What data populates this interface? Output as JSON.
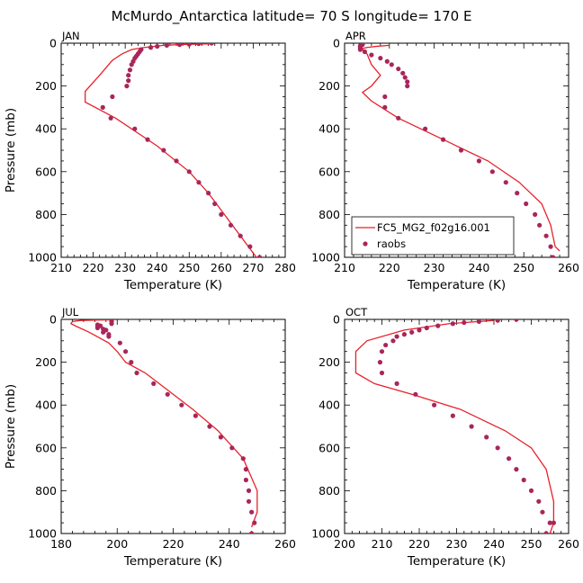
{
  "figure": {
    "title": "McMurdo_Antarctica  latitude= 70 S longitude= 170 E"
  },
  "legend": {
    "model_label": "FC5_MG2_f02g16.001",
    "obs_label": "raobs",
    "placement": "inside APR panel, lower-left",
    "model_color": "#e8212a",
    "obs_color": "#a8265a"
  },
  "chart_data": [
    {
      "type": "line",
      "panel": "JAN",
      "xlabel": "Temperature (K)",
      "ylabel": "Pressure (mb)",
      "xlim": [
        210,
        280
      ],
      "ylim": [
        1000,
        0
      ],
      "xticks": [
        210,
        220,
        230,
        240,
        250,
        260,
        270,
        280
      ],
      "yticks": [
        0,
        200,
        400,
        600,
        800,
        1000
      ],
      "grid": false,
      "series": [
        {
          "name": "FC5_MG2_f02g16.001",
          "style": "line",
          "color": "#e8212a",
          "points": [
            [
              257,
              3
            ],
            [
              250,
              5
            ],
            [
              242,
              10
            ],
            [
              236,
              20
            ],
            [
              232,
              30
            ],
            [
              229,
              50
            ],
            [
              226,
              80
            ],
            [
              222,
              150
            ],
            [
              217.5,
              225
            ],
            [
              217.5,
              275
            ],
            [
              227,
              350
            ],
            [
              240,
              480
            ],
            [
              250,
              600
            ],
            [
              256,
              700
            ],
            [
              261,
              800
            ],
            [
              266,
              900
            ],
            [
              271,
              1000
            ]
          ]
        },
        {
          "name": "raobs",
          "style": "markers",
          "color": "#a8265a",
          "points": [
            [
              257,
              0
            ],
            [
              253,
              2
            ],
            [
              250,
              5
            ],
            [
              247,
              7
            ],
            [
              243,
              10
            ],
            [
              240,
              15
            ],
            [
              238,
              20
            ],
            [
              235,
              30
            ],
            [
              234.5,
              40
            ],
            [
              234,
              50
            ],
            [
              233.5,
              60
            ],
            [
              233,
              70
            ],
            [
              232.5,
              85
            ],
            [
              232,
              100
            ],
            [
              231.5,
              125
            ],
            [
              231,
              150
            ],
            [
              231,
              175
            ],
            [
              230.5,
              200
            ],
            [
              226,
              250
            ],
            [
              223,
              300
            ],
            [
              225.5,
              350
            ],
            [
              233,
              400
            ],
            [
              237,
              450
            ],
            [
              242,
              500
            ],
            [
              246,
              550
            ],
            [
              250,
              600
            ],
            [
              253,
              650
            ],
            [
              256,
              700
            ],
            [
              258,
              750
            ],
            [
              260,
              800
            ],
            [
              263,
              850
            ],
            [
              266,
              900
            ],
            [
              269,
              950
            ],
            [
              272,
              1000
            ]
          ]
        }
      ]
    },
    {
      "type": "line",
      "panel": "APR",
      "xlabel": "Temperature (K)",
      "ylabel": "",
      "xlim": [
        210,
        260
      ],
      "ylim": [
        1000,
        0
      ],
      "xticks": [
        210,
        220,
        230,
        240,
        250,
        260
      ],
      "yticks": [
        0,
        200,
        400,
        600,
        800,
        1000
      ],
      "grid": false,
      "series": [
        {
          "name": "FC5_MG2_f02g16.001",
          "style": "line",
          "color": "#e8212a",
          "points": [
            [
              220,
              10
            ],
            [
              217,
              15
            ],
            [
              215,
              20
            ],
            [
              214,
              25
            ],
            [
              214,
              30
            ],
            [
              215,
              50
            ],
            [
              216,
              100
            ],
            [
              218,
              150
            ],
            [
              216,
              200
            ],
            [
              214,
              230
            ],
            [
              216,
              270
            ],
            [
              222,
              350
            ],
            [
              232,
              450
            ],
            [
              242,
              550
            ],
            [
              249,
              650
            ],
            [
              254,
              750
            ],
            [
              256,
              850
            ],
            [
              257,
              950
            ],
            [
              258,
              970
            ]
          ]
        },
        {
          "name": "raobs",
          "style": "markers",
          "color": "#a8265a",
          "points": [
            [
              214,
              2
            ],
            [
              214,
              7
            ],
            [
              213.5,
              12
            ],
            [
              213.5,
              17
            ],
            [
              213.5,
              22
            ],
            [
              213.5,
              30
            ],
            [
              214.5,
              40
            ],
            [
              216,
              55
            ],
            [
              218,
              70
            ],
            [
              219.5,
              85
            ],
            [
              220.5,
              100
            ],
            [
              222,
              120
            ],
            [
              223,
              140
            ],
            [
              223.5,
              160
            ],
            [
              224,
              180
            ],
            [
              224,
              200
            ],
            [
              219,
              250
            ],
            [
              219,
              300
            ],
            [
              222,
              350
            ],
            [
              228,
              400
            ],
            [
              232,
              450
            ],
            [
              236,
              500
            ],
            [
              240,
              550
            ],
            [
              243,
              600
            ],
            [
              246,
              650
            ],
            [
              248.5,
              700
            ],
            [
              250.5,
              750
            ],
            [
              252.5,
              800
            ],
            [
              253.5,
              850
            ],
            [
              255,
              900
            ],
            [
              256,
              950
            ],
            [
              256.5,
              1000
            ]
          ]
        }
      ]
    },
    {
      "type": "line",
      "panel": "JUL",
      "xlabel": "Temperature (K)",
      "ylabel": "Pressure (mb)",
      "xlim": [
        180,
        260
      ],
      "ylim": [
        1000,
        0
      ],
      "xticks": [
        180,
        200,
        220,
        240,
        260
      ],
      "yticks": [
        0,
        200,
        400,
        600,
        800,
        1000
      ],
      "grid": false,
      "series": [
        {
          "name": "FC5_MG2_f02g16.001",
          "style": "line",
          "color": "#e8212a",
          "points": [
            [
              199,
              2
            ],
            [
              193,
              3
            ],
            [
              187,
              5
            ],
            [
              184,
              10
            ],
            [
              183.5,
              20
            ],
            [
              185,
              30
            ],
            [
              190,
              60
            ],
            [
              197,
              110
            ],
            [
              200,
              150
            ],
            [
              203,
              200
            ],
            [
              210,
              250
            ],
            [
              218,
              330
            ],
            [
              227,
              420
            ],
            [
              236,
              520
            ],
            [
              245,
              650
            ],
            [
              250,
              800
            ],
            [
              250,
              900
            ],
            [
              248,
              970
            ]
          ]
        },
        {
          "name": "raobs",
          "style": "markers",
          "color": "#a8265a",
          "points": [
            [
              198,
              10
            ],
            [
              198,
              20
            ],
            [
              193,
              25
            ],
            [
              194,
              30
            ],
            [
              193,
              35
            ],
            [
              193,
              40
            ],
            [
              195,
              45
            ],
            [
              196,
              50
            ],
            [
              195,
              60
            ],
            [
              197,
              70
            ],
            [
              197,
              80
            ],
            [
              201,
              110
            ],
            [
              203,
              150
            ],
            [
              205,
              200
            ],
            [
              207,
              250
            ],
            [
              213,
              300
            ],
            [
              218,
              350
            ],
            [
              223,
              400
            ],
            [
              228,
              450
            ],
            [
              233,
              500
            ],
            [
              237,
              550
            ],
            [
              241,
              600
            ],
            [
              245,
              650
            ],
            [
              246,
              700
            ],
            [
              246,
              750
            ],
            [
              247,
              800
            ],
            [
              247,
              850
            ],
            [
              248,
              900
            ],
            [
              249,
              950
            ],
            [
              248,
              1000
            ]
          ]
        }
      ]
    },
    {
      "type": "line",
      "panel": "OCT",
      "xlabel": "Temperature (K)",
      "ylabel": "",
      "xlim": [
        200,
        260
      ],
      "ylim": [
        1000,
        0
      ],
      "xticks": [
        200,
        210,
        220,
        230,
        240,
        250,
        260
      ],
      "yticks": [
        0,
        200,
        400,
        600,
        800,
        1000
      ],
      "grid": false,
      "series": [
        {
          "name": "FC5_MG2_f02g16.001",
          "style": "line",
          "color": "#e8212a",
          "points": [
            [
              240,
              5
            ],
            [
              228,
              20
            ],
            [
              216,
              50
            ],
            [
              206,
              100
            ],
            [
              203,
              150
            ],
            [
              203,
              250
            ],
            [
              208,
              300
            ],
            [
              218,
              350
            ],
            [
              231,
              420
            ],
            [
              243,
              520
            ],
            [
              250,
              600
            ],
            [
              254,
              700
            ],
            [
              256,
              850
            ],
            [
              256,
              950
            ],
            [
              255,
              1000
            ]
          ]
        },
        {
          "name": "raobs",
          "style": "markers",
          "color": "#a8265a",
          "points": [
            [
              246,
              0
            ],
            [
              241,
              5
            ],
            [
              236,
              10
            ],
            [
              232,
              15
            ],
            [
              229,
              20
            ],
            [
              225,
              30
            ],
            [
              222,
              40
            ],
            [
              220,
              50
            ],
            [
              218,
              60
            ],
            [
              216,
              70
            ],
            [
              214,
              80
            ],
            [
              213,
              100
            ],
            [
              211,
              120
            ],
            [
              210,
              150
            ],
            [
              209.5,
              200
            ],
            [
              210,
              250
            ],
            [
              214,
              300
            ],
            [
              219,
              350
            ],
            [
              224,
              400
            ],
            [
              229,
              450
            ],
            [
              234,
              500
            ],
            [
              238,
              550
            ],
            [
              241,
              600
            ],
            [
              244,
              650
            ],
            [
              246,
              700
            ],
            [
              248,
              750
            ],
            [
              250,
              800
            ],
            [
              252,
              850
            ],
            [
              253,
              900
            ],
            [
              255,
              950
            ],
            [
              256,
              950
            ],
            [
              254,
              1000
            ]
          ]
        }
      ]
    }
  ]
}
